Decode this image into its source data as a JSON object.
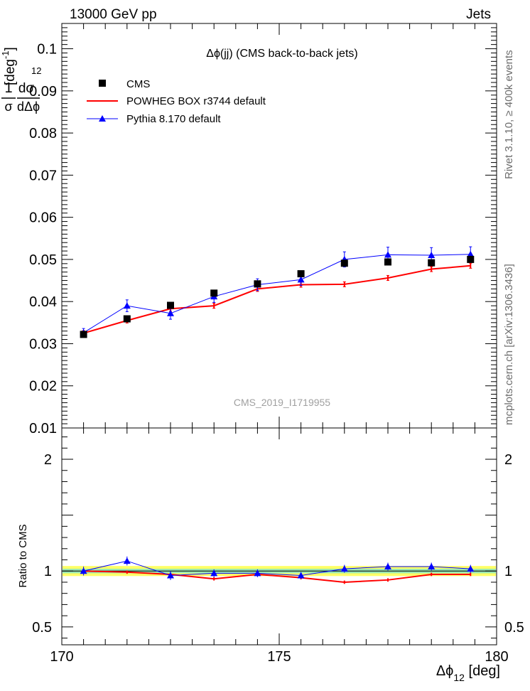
{
  "header": {
    "left": "13000 GeV pp",
    "right": "Jets"
  },
  "side_labels": {
    "rivet": "Rivet 3.1.10, ≥ 400k events",
    "mcplots": "mcplots.cern.ch [arXiv:1306.3436]"
  },
  "chart_data": {
    "type": "line",
    "title": "Δϕ(jj) (CMS back-to-back jets)",
    "watermark": "CMS_2019_I1719955",
    "xlabel": "Δϕ₁₂ [deg]",
    "ylabel": "1/σ dσ/dΔϕ₁₂ [deg⁻¹]",
    "ratio_ylabel": "Ratio to CMS",
    "xlim": [
      170,
      180
    ],
    "ylim": [
      0.01,
      0.106
    ],
    "ratio_ylim": [
      0.34,
      2.28
    ],
    "x_ticks": [
      170,
      175,
      180
    ],
    "y_ticks": [
      0.01,
      0.02,
      0.03,
      0.04,
      0.05,
      0.06,
      0.07,
      0.08,
      0.09,
      0.1
    ],
    "y_tick_labels": [
      "0.01",
      "0.02",
      "0.03",
      "0.04",
      "0.05",
      "0.06",
      "0.07",
      "0.08",
      "0.09",
      "0.1"
    ],
    "ratio_ticks": [
      0.5,
      1,
      2
    ],
    "ratio_tick_labels": [
      "0.5",
      "1",
      "2"
    ],
    "x": [
      170.5,
      171.5,
      172.5,
      173.5,
      174.5,
      175.5,
      176.5,
      177.5,
      178.5,
      179.4
    ],
    "series": [
      {
        "name": "CMS",
        "color": "#000000",
        "marker": "square",
        "values": [
          0.0322,
          0.0359,
          0.0391,
          0.042,
          0.0442,
          0.0466,
          0.0491,
          0.0494,
          0.0492,
          0.05
        ],
        "errors": [
          0.0005,
          0.0004,
          0.0004,
          0.0004,
          0.0004,
          0.0004,
          0.0004,
          0.0004,
          0.0004,
          0.0004
        ]
      },
      {
        "name": "POWHEG BOX r3744 default",
        "color": "#ff0000",
        "marker": "line",
        "values": [
          0.0325,
          0.0355,
          0.0383,
          0.039,
          0.043,
          0.044,
          0.0441,
          0.0456,
          0.0477,
          0.0485
        ],
        "errors": [
          0.0006,
          0.0006,
          0.0006,
          0.0006,
          0.0006,
          0.0006,
          0.0006,
          0.0006,
          0.0006,
          0.0006
        ],
        "ratio": [
          1.0,
          0.99,
          0.97,
          0.93,
          0.97,
          0.94,
          0.9,
          0.92,
          0.97,
          0.97
        ],
        "ratio_errors": [
          0.015,
          0.015,
          0.015,
          0.015,
          0.015,
          0.015,
          0.015,
          0.015,
          0.015,
          0.015
        ]
      },
      {
        "name": "Pythia 8.170 default",
        "color": "#0000ff",
        "marker": "triangle",
        "values": [
          0.0326,
          0.039,
          0.0372,
          0.0412,
          0.044,
          0.0452,
          0.05,
          0.0511,
          0.051,
          0.0512
        ],
        "errors": [
          0.001,
          0.0014,
          0.0014,
          0.0014,
          0.0014,
          0.0014,
          0.0018,
          0.0018,
          0.0018,
          0.0018
        ],
        "ratio": [
          1.0,
          1.09,
          0.96,
          0.98,
          0.98,
          0.96,
          1.02,
          1.04,
          1.04,
          1.02
        ],
        "ratio_errors": [
          0.04,
          0.04,
          0.04,
          0.035,
          0.035,
          0.03,
          0.035,
          0.035,
          0.035,
          0.035
        ]
      }
    ],
    "ratio_band": {
      "inner_color": "#99e6b3",
      "outer_color": "#ffff66",
      "inner": 0.02,
      "outer": 0.045
    }
  }
}
